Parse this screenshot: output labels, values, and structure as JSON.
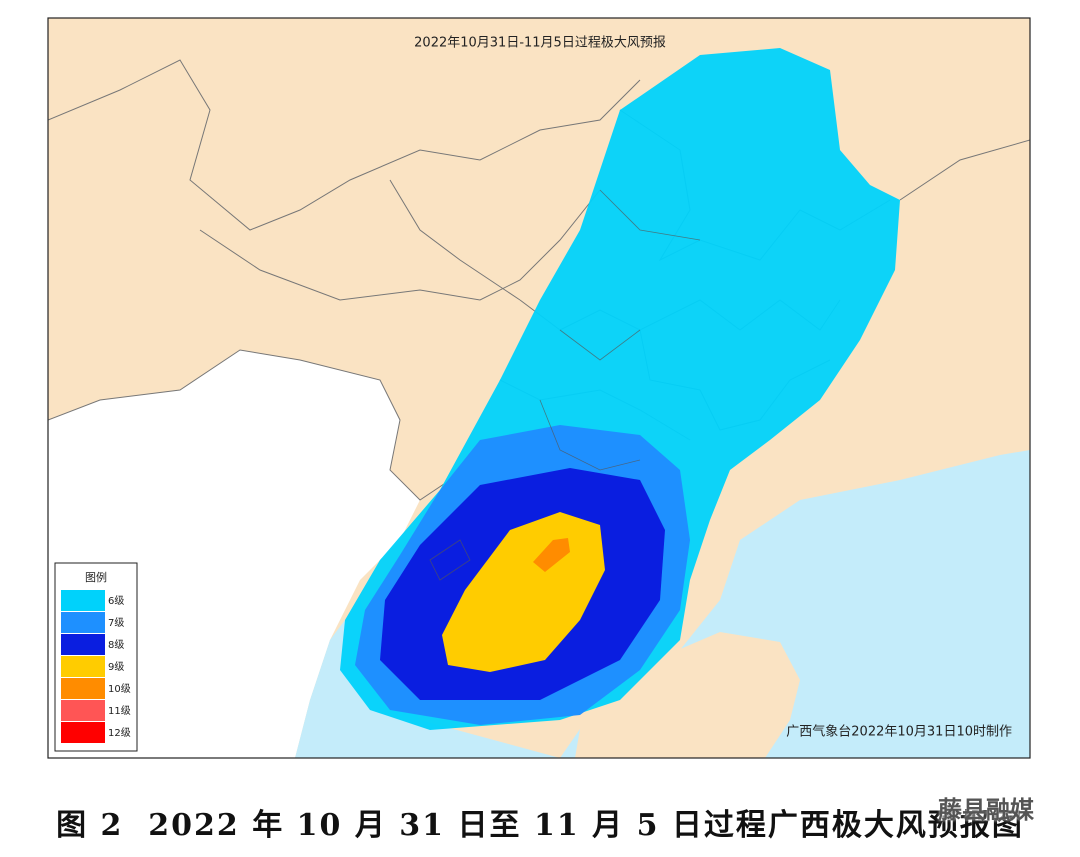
{
  "map": {
    "title": "2022年10月31日-11月5日过程极大风预报",
    "credit": "广西气象台2022年10月31日10时制作",
    "legend": {
      "title": "图例",
      "items": [
        {
          "label": "6级",
          "color": "#00d2fb"
        },
        {
          "label": "7级",
          "color": "#1e90ff"
        },
        {
          "label": "8级",
          "color": "#0a1ee0"
        },
        {
          "label": "9级",
          "color": "#ffcc00"
        },
        {
          "label": "10级",
          "color": "#ff8c00"
        },
        {
          "label": "11级",
          "color": "#ff5555"
        },
        {
          "label": "12级",
          "color": "#ff0000"
        }
      ]
    }
  },
  "caption": "图 2  2022 年 10 月 31 日至 11 月 5 日过程广西极大风预报图",
  "watermark": "藤县融媒"
}
